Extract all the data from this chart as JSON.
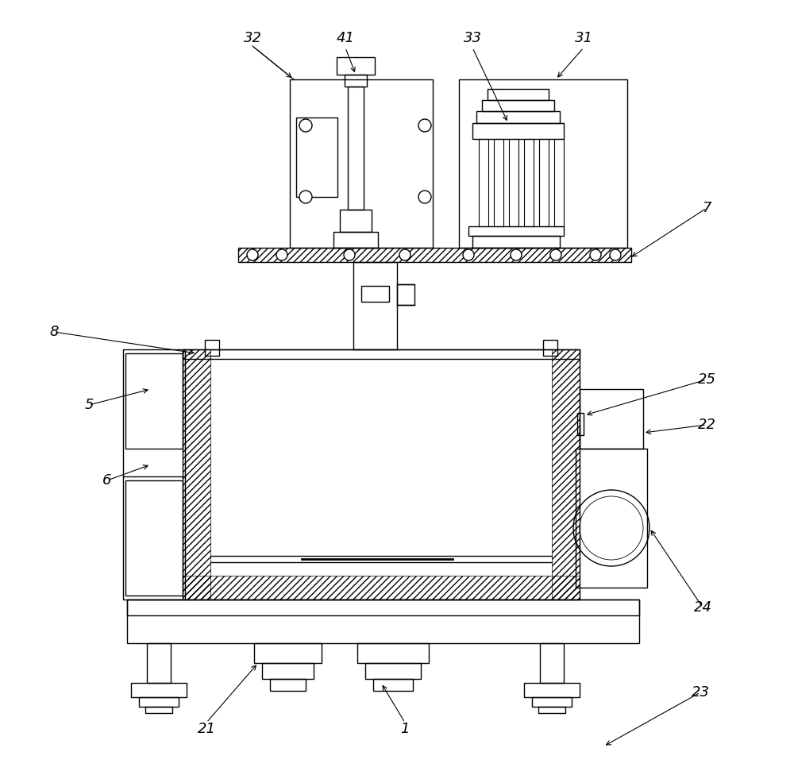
{
  "background_color": "#ffffff",
  "line_color": "#000000",
  "lw": 1.0,
  "figsize": [
    10.0,
    9.76
  ],
  "dpi": 100
}
